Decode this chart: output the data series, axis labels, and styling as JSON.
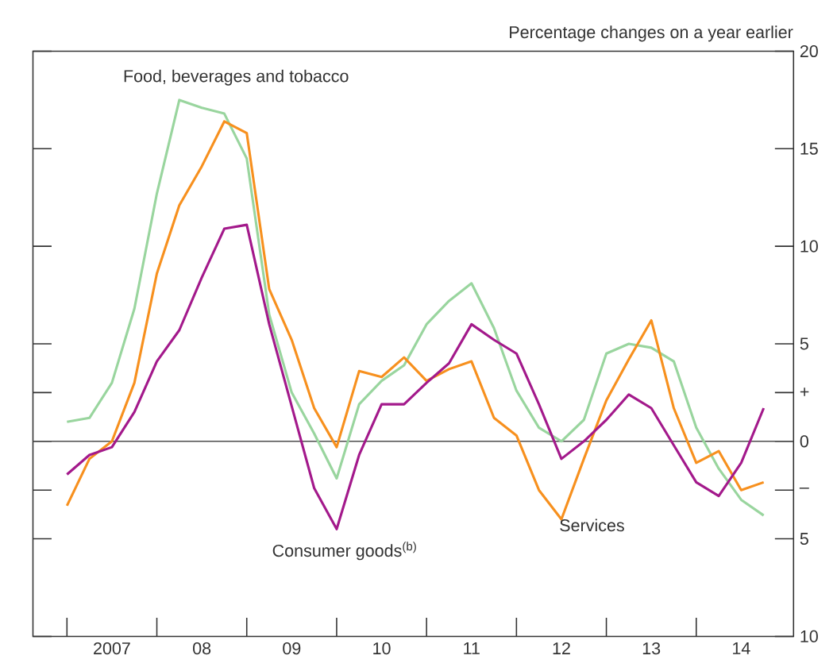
{
  "chart_data": {
    "type": "line",
    "ylabel": "Percentage changes on a year earlier",
    "x": [
      "2007-01",
      "2007-04",
      "2007-07",
      "2007-10",
      "2008-01",
      "2008-04",
      "2008-07",
      "2008-10",
      "2009-01",
      "2009-04",
      "2009-07",
      "2009-10",
      "2010-01",
      "2010-04",
      "2010-07",
      "2010-10",
      "2011-01",
      "2011-04",
      "2011-07",
      "2011-10",
      "2012-01",
      "2012-04",
      "2012-07",
      "2012-10",
      "2013-01",
      "2013-04",
      "2013-07",
      "2013-10",
      "2014-01",
      "2014-04",
      "2014-07",
      "2014-10"
    ],
    "series": [
      {
        "name": "Food, beverages and tobacco",
        "color": "#99d59e",
        "values": [
          1.0,
          1.2,
          3.0,
          6.8,
          12.7,
          17.5,
          17.1,
          16.8,
          14.5,
          6.5,
          2.5,
          0.4,
          -1.9,
          1.9,
          3.1,
          3.9,
          6.0,
          7.2,
          8.1,
          5.8,
          2.6,
          0.7,
          0.0,
          1.1,
          4.5,
          5.0,
          4.8,
          4.1,
          0.7,
          -1.4,
          -3.0,
          -3.8
        ]
      },
      {
        "name": "Services",
        "color": "#f7901e",
        "values": [
          -3.3,
          -0.9,
          0.0,
          3.0,
          8.6,
          12.1,
          14.1,
          16.4,
          15.8,
          7.8,
          5.2,
          1.7,
          -0.3,
          3.6,
          3.3,
          4.3,
          3.1,
          3.7,
          4.1,
          1.2,
          0.3,
          -2.5,
          -4.0,
          -0.9,
          2.1,
          4.2,
          6.2,
          1.7,
          -1.1,
          -0.5,
          -2.5,
          -2.1
        ]
      },
      {
        "name": "Consumer goods$^{(b)}$",
        "color": "#a3198b",
        "values": [
          -1.7,
          -0.7,
          -0.3,
          1.5,
          4.1,
          5.7,
          8.4,
          10.9,
          11.1,
          6.0,
          1.8,
          -2.4,
          -4.5,
          -0.7,
          1.9,
          1.9,
          3.0,
          4.0,
          6.0,
          5.2,
          4.5,
          1.9,
          -0.9,
          0.0,
          1.1,
          2.4,
          1.7,
          -0.2,
          -2.1,
          -2.8,
          -1.1,
          1.7
        ]
      }
    ],
    "xlim": [
      "2006-08-15",
      "2015-01-31"
    ],
    "xticks": [
      {
        "value": "2007-01",
        "label": null
      },
      {
        "value": "2008-01",
        "label": null
      },
      {
        "value": "2009-01",
        "label": null
      },
      {
        "value": "2010-01",
        "label": null
      },
      {
        "value": "2011-01",
        "label": null
      },
      {
        "value": "2012-01",
        "label": null
      },
      {
        "value": "2013-01",
        "label": null
      },
      {
        "value": "2014-01",
        "label": null
      },
      {
        "value": "2007-07",
        "label": "2007"
      },
      {
        "value": "2008-07",
        "label": "08"
      },
      {
        "value": "2009-07",
        "label": "09"
      },
      {
        "value": "2010-07",
        "label": "10"
      },
      {
        "value": "2011-07",
        "label": "11"
      },
      {
        "value": "2012-07",
        "label": "12"
      },
      {
        "value": "2013-07",
        "label": "13"
      },
      {
        "value": "2014-07",
        "label": "14"
      }
    ],
    "ylim": [
      -10,
      20
    ],
    "yticks": [
      20,
      15,
      10,
      5,
      {
        "value": 2.5,
        "label": "+"
      },
      0,
      {
        "value": -2.5,
        "label": "–"
      },
      {
        "value": -5,
        "label": "5"
      },
      {
        "value": -10,
        "label": "10"
      }
    ],
    "ref_lines": [
      {
        "axis": "y",
        "value": 0,
        "color": "#4d4d4d"
      }
    ]
  }
}
